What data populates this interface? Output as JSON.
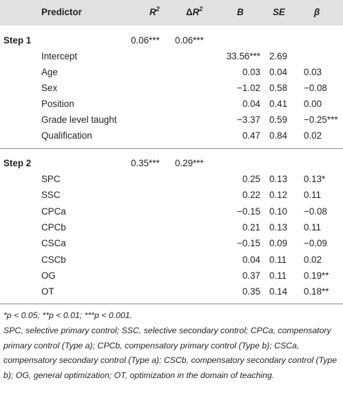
{
  "table": {
    "headers": {
      "predictor": "Predictor",
      "r2": "R",
      "r2_sup": "2",
      "delta_symbol": "Δ",
      "dr2": "R",
      "dr2_sup": "2",
      "b": "B",
      "se": "SE",
      "beta": "β"
    },
    "step1": {
      "label": "Step 1",
      "r2": "0.06***",
      "dr2": "0.06***",
      "rows": [
        {
          "predictor": "Intercept",
          "b": "33.56***",
          "se": "2.69",
          "beta": ""
        },
        {
          "predictor": "Age",
          "b": "0.03",
          "se": "0.04",
          "beta": "0.03"
        },
        {
          "predictor": "Sex",
          "b": "−1.02",
          "se": "0.58",
          "beta": "−0.08"
        },
        {
          "predictor": "Position",
          "b": "0.04",
          "se": "0.41",
          "beta": "0.00"
        },
        {
          "predictor": "Grade level taught",
          "b": "−3.37",
          "se": "0.59",
          "beta": "−0.25***"
        },
        {
          "predictor": "Qualification",
          "b": "0.47",
          "se": "0.84",
          "beta": "0.02"
        }
      ]
    },
    "step2": {
      "label": "Step 2",
      "r2": "0.35***",
      "dr2": "0.29***",
      "rows": [
        {
          "predictor": "SPC",
          "b": "0.25",
          "se": "0.13",
          "beta": "0.13*"
        },
        {
          "predictor": "SSC",
          "b": "0.22",
          "se": "0.12",
          "beta": "0.11"
        },
        {
          "predictor": "CPCa",
          "b": "−0.15",
          "se": "0.10",
          "beta": "−0.08"
        },
        {
          "predictor": "CPCb",
          "b": "0.21",
          "se": "0.13",
          "beta": "0.11"
        },
        {
          "predictor": "CSCa",
          "b": "−0.15",
          "se": "0.09",
          "beta": "−0.09"
        },
        {
          "predictor": "CSCb",
          "b": "0.04",
          "se": "0.11",
          "beta": "0.02"
        },
        {
          "predictor": "OG",
          "b": "0.37",
          "se": "0.11",
          "beta": "0.19**"
        },
        {
          "predictor": "OT",
          "b": "0.35",
          "se": "0.14",
          "beta": "0.18**"
        }
      ]
    }
  },
  "footnotes": {
    "significance": "*p < 0.05; **p < 0.01; ***p < 0.001.",
    "abbreviations": "SPC, selective primary control; SSC, selective secondary control; CPCa, compensatory primary control (Type a); CPCb, compensatory primary control (Type b); CSCa, compensatory secondary control (Type a); CSCb, compensatory secondary control (Type b); OG, general optimization; OT, optimization in the domain of teaching."
  }
}
